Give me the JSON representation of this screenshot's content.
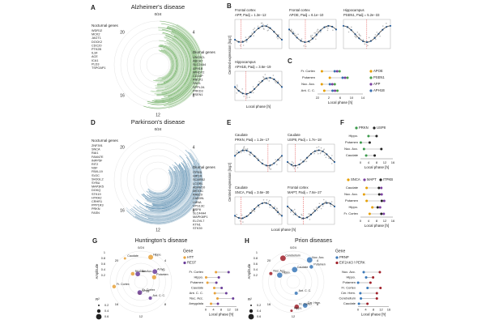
{
  "panels": {
    "A": {
      "letter": "A",
      "title": "Alzheimer's disease",
      "top": "0/24",
      "hours": [
        "20",
        "4",
        "16",
        "8",
        "12"
      ],
      "nocturnal_title": "Nocturnal genes",
      "nocturnal": [
        "WDR12",
        "MCK2",
        "JAGT1",
        "DOCK2",
        "CDC20",
        "PTK2B",
        "IL34",
        "ACE",
        "ICA1",
        "PLD3",
        "TSPOAP1"
      ],
      "diurnal_title": "Diurnal genes",
      "diurnal": [
        "UNC5CL",
        "ABCA7",
        "SLC24A4",
        "APH1B",
        "MINDY2",
        "CD2AP",
        "RBCK1",
        "SNX1",
        "SPPL2A",
        "PRKD3",
        "PSEN1"
      ]
    },
    "B": {
      "letter": "B",
      "y_label": "Centred expression [log2]",
      "x_label": "Local phase [h]",
      "plots": [
        {
          "region": "Frontal cortex",
          "label": "APP, Padj = 1.3e−12"
        },
        {
          "region": "Frontal cortex",
          "label": "APOE, Padj = 6.1e−10"
        },
        {
          "region": "Hippocampus",
          "label": "PSEN1, Padj = 5.2e−33"
        },
        {
          "region": "Hippocampus",
          "label": "APH1B, Padj = 3.6e−19"
        }
      ]
    },
    "C": {
      "letter": "C",
      "rows": [
        "Fr. Cortex",
        "Putamen",
        "Nuc. Acc.",
        "Ant. C. C."
      ],
      "legend": [
        {
          "name": "APOE",
          "color": "#e69f00"
        },
        {
          "name": "PSEN1",
          "color": "#4aa04a"
        },
        {
          "name": "APP",
          "color": "#7b3fa0"
        },
        {
          "name": "APH1B",
          "color": "#3a6fb0"
        }
      ],
      "ticks": [
        "22",
        "2",
        "6",
        "10",
        "14"
      ],
      "x_label": "Local phase [h]"
    },
    "D": {
      "letter": "D",
      "title": "Parkinson's disease",
      "top": "0/24",
      "hours": [
        "20",
        "4",
        "16",
        "8",
        "12"
      ],
      "nocturnal_title": "Nocturnal genes",
      "nocturnal": [
        "ZNF391",
        "SNCA",
        "RAI1",
        "FAM47E",
        "INPP5F",
        "RIT2",
        "NSF",
        "FBXL19",
        "SV2C",
        "SH3GL2",
        "SYBU",
        "MAP3K5",
        "DGKQ",
        "STK19",
        "HTRA2",
        "CRHR1",
        "PPP1R3",
        "PRKN",
        "FASN"
      ],
      "diurnal_title": "Diurnal genes",
      "diurnal": [
        "ITPKB",
        "HIP1R",
        "SCARB2",
        "LCORL",
        "ADAM10",
        "MEX3C",
        "RAB29",
        "CAB39L",
        "LMNA",
        "VPS13C",
        "USP8",
        "SLC44A4",
        "MAPK8IP1",
        "ELOVL7",
        "KTN1",
        "STK39"
      ]
    },
    "E": {
      "letter": "E",
      "y_label": "Centred expression [log2]",
      "x_label": "Local phase [h]",
      "plots": [
        {
          "region": "Caudate",
          "label": "PRKN, Padj = 1.2e−17"
        },
        {
          "region": "Caudate",
          "label": "USP8, Padj = 1.7e−18"
        },
        {
          "region": "Caudate",
          "label": "SNCA, Padj = 3.6e−30"
        },
        {
          "region": "Frontal cortex",
          "label": "MAPT, Padj = 7.6e−27"
        }
      ]
    },
    "F": {
      "letter": "F",
      "top": {
        "legend": [
          {
            "name": "PRKN",
            "color": "#3a9a4a"
          },
          {
            "name": "USP8",
            "color": "#222222"
          }
        ],
        "rows": [
          "Hippo.",
          "Putamen",
          "Nuc. Acc.",
          "Caudate"
        ]
      },
      "bottom": {
        "legend": [
          {
            "name": "SNCA",
            "color": "#e69f00"
          },
          {
            "name": "MAPT",
            "color": "#7b3fa0"
          },
          {
            "name": "ITPKB",
            "color": "#222222"
          }
        ],
        "rows": [
          "Caudate",
          "Nuc. Acc.",
          "Putamen",
          "Hippo.",
          "Fr. Cortex"
        ]
      },
      "ticks": [
        "0",
        "4",
        "8",
        "12",
        "16"
      ],
      "x_label": "Local phase [h]"
    },
    "G": {
      "letter": "G",
      "title": "Huntington's disease",
      "top": "0/24",
      "hours": [
        "20",
        "4",
        "16",
        "8",
        "12"
      ],
      "amp_label": "Amplitude",
      "amp_ticks": [
        "1",
        "0.8",
        "0.6",
        "0.4",
        "0.2"
      ],
      "r2_title": "R²",
      "r2_ticks": [
        "0.2",
        "0.4",
        "0.6"
      ],
      "gene_title": "Gene",
      "legend": [
        {
          "name": "HTT",
          "color": "#e8a23a"
        },
        {
          "name": "REST",
          "color": "#6a3d9a"
        }
      ],
      "points": [
        "Hippo.",
        "Fr. Cortex",
        "Amyg.",
        "Nuc. Acc.",
        "Putamen",
        "Caudate",
        "Ant. C. C.",
        "Amyg.",
        "Fr. Cortex",
        "Nuc. Acc."
      ],
      "rows": [
        "Fr. Cortex",
        "Hippo.",
        "Putamen",
        "Caudate",
        "Ant. C. C.",
        "Nuc. Acc.",
        "Amygdala"
      ],
      "ticks": [
        "0",
        "4",
        "8",
        "12",
        "16"
      ],
      "x_label": "Local phase [h]"
    },
    "H": {
      "letter": "H",
      "title": "Prion diseases",
      "top": "0/24",
      "hours": [
        "20",
        "4",
        "16",
        "8",
        "12"
      ],
      "amp_label": "Amplitude",
      "amp_ticks": [
        "1",
        "0.8",
        "0.6",
        "0.4",
        "0.2"
      ],
      "r2_title": "R²",
      "r2_ticks": [
        "0.2",
        "0.4",
        "0.6"
      ],
      "gene_title": "Gene",
      "legend": [
        {
          "name": "PRNP",
          "color": "#3a78b8"
        },
        {
          "name": "EIF2AK3 / PERK",
          "color": "#a0202a"
        }
      ],
      "points": [
        "Nuc. Acc.",
        "Hippo.",
        "Ant. C. C.",
        "Cer. Hem.",
        "Putamen",
        "Caudate",
        "Fr. Cortex",
        "Cerebellum",
        "Nuc. Acc.",
        "Hippo."
      ],
      "rows": [
        "Nuc. Acc.",
        "Hippo.",
        "Putamen",
        "Fr. Cortex",
        "Cer. Hem.",
        "Cerebellum",
        "Caudate"
      ],
      "ticks": [
        "0",
        "4",
        "8",
        "12",
        "16"
      ],
      "x_label": "Local phase [h]"
    }
  }
}
